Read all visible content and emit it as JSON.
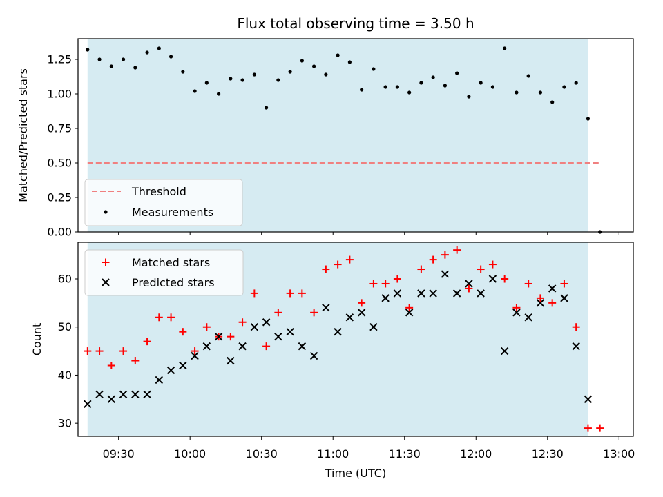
{
  "chart_data": [
    {
      "type": "scatter",
      "title": "Flux total observing time = 3.50 h",
      "xlabel": "",
      "ylabel": "Matched/Predicted stars",
      "xlim": [
        "09:13",
        "13:06"
      ],
      "ylim": [
        0,
        1.4
      ],
      "yticks": [
        0.0,
        0.25,
        0.5,
        0.75,
        1.0,
        1.25
      ],
      "ytick_labels": [
        "0.00",
        "0.25",
        "0.50",
        "0.75",
        "1.00",
        "1.25"
      ],
      "observing_window": [
        "09:17",
        "12:47"
      ],
      "observing_window_color": "#add8e6",
      "grid": false,
      "legend_position": "lower left",
      "threshold": {
        "name": "Threshold",
        "value": 0.5,
        "x_range": [
          "09:17",
          "12:52"
        ],
        "color": "#f08080",
        "style": "dashed"
      },
      "series": [
        {
          "name": "Measurements",
          "marker": "dot",
          "color": "#000000",
          "x": [
            "09:17",
            "09:22",
            "09:27",
            "09:32",
            "09:37",
            "09:42",
            "09:47",
            "09:52",
            "09:57",
            "10:02",
            "10:07",
            "10:12",
            "10:17",
            "10:22",
            "10:27",
            "10:32",
            "10:37",
            "10:42",
            "10:47",
            "10:52",
            "10:57",
            "11:02",
            "11:07",
            "11:12",
            "11:17",
            "11:22",
            "11:27",
            "11:32",
            "11:37",
            "11:42",
            "11:47",
            "11:52",
            "11:57",
            "12:02",
            "12:07",
            "12:12",
            "12:17",
            "12:22",
            "12:27",
            "12:32",
            "12:37",
            "12:42",
            "12:47",
            "12:52"
          ],
          "y": [
            1.32,
            1.25,
            1.2,
            1.25,
            1.19,
            1.3,
            1.33,
            1.27,
            1.16,
            1.02,
            1.08,
            1.0,
            1.11,
            1.1,
            1.14,
            0.9,
            1.1,
            1.16,
            1.24,
            1.2,
            1.14,
            1.28,
            1.23,
            1.03,
            1.18,
            1.05,
            1.05,
            1.01,
            1.08,
            1.12,
            1.06,
            1.15,
            0.98,
            1.08,
            1.05,
            1.33,
            1.01,
            1.13,
            1.01,
            0.94,
            1.05,
            1.08,
            0.82,
            0.0
          ]
        }
      ]
    },
    {
      "type": "scatter",
      "title": "",
      "xlabel": "Time (UTC)",
      "ylabel": "Count",
      "xlim": [
        "09:13",
        "13:06"
      ],
      "ylim": [
        27.3,
        67.6
      ],
      "yticks": [
        30,
        40,
        50,
        60
      ],
      "ytick_labels": [
        "30",
        "40",
        "50",
        "60"
      ],
      "xticks": [
        "09:30",
        "10:00",
        "10:30",
        "11:00",
        "11:30",
        "12:00",
        "12:30",
        "13:00"
      ],
      "xtick_labels": [
        "09:30",
        "10:00",
        "10:30",
        "11:00",
        "11:30",
        "12:00",
        "12:30",
        "13:00"
      ],
      "observing_window": [
        "09:17",
        "12:47"
      ],
      "observing_window_color": "#add8e6",
      "grid": false,
      "legend_position": "upper left",
      "series": [
        {
          "name": "Matched stars",
          "marker": "plus",
          "color": "#ff0000",
          "x": [
            "09:17",
            "09:22",
            "09:27",
            "09:32",
            "09:37",
            "09:42",
            "09:47",
            "09:52",
            "09:57",
            "10:02",
            "10:07",
            "10:12",
            "10:17",
            "10:22",
            "10:27",
            "10:32",
            "10:37",
            "10:42",
            "10:47",
            "10:52",
            "10:57",
            "11:02",
            "11:07",
            "11:12",
            "11:17",
            "11:22",
            "11:27",
            "11:32",
            "11:37",
            "11:42",
            "11:47",
            "11:52",
            "11:57",
            "12:02",
            "12:07",
            "12:12",
            "12:17",
            "12:22",
            "12:27",
            "12:32",
            "12:37",
            "12:42",
            "12:47",
            "12:52"
          ],
          "y": [
            45,
            45,
            42,
            45,
            43,
            47,
            52,
            52,
            49,
            45,
            50,
            48,
            48,
            51,
            57,
            46,
            53,
            57,
            57,
            53,
            62,
            63,
            64,
            55,
            59,
            59,
            60,
            54,
            62,
            64,
            65,
            66,
            58,
            62,
            63,
            60,
            54,
            59,
            56,
            55,
            59,
            50,
            29,
            29
          ]
        },
        {
          "name": "Predicted stars",
          "marker": "x",
          "color": "#000000",
          "x": [
            "09:17",
            "09:22",
            "09:27",
            "09:32",
            "09:37",
            "09:42",
            "09:47",
            "09:52",
            "09:57",
            "10:02",
            "10:07",
            "10:12",
            "10:17",
            "10:22",
            "10:27",
            "10:32",
            "10:37",
            "10:42",
            "10:47",
            "10:52",
            "10:57",
            "11:02",
            "11:07",
            "11:12",
            "11:17",
            "11:22",
            "11:27",
            "11:32",
            "11:37",
            "11:42",
            "11:47",
            "11:52",
            "11:57",
            "12:02",
            "12:07",
            "12:12",
            "12:17",
            "12:22",
            "12:27",
            "12:32",
            "12:37",
            "12:42",
            "12:47"
          ],
          "y": [
            34,
            36,
            35,
            36,
            36,
            36,
            39,
            41,
            42,
            44,
            46,
            48,
            43,
            46,
            50,
            51,
            48,
            49,
            46,
            44,
            54,
            49,
            52,
            53,
            50,
            56,
            57,
            53,
            57,
            57,
            61,
            57,
            59,
            57,
            60,
            45,
            53,
            52,
            55,
            58,
            56,
            46,
            35
          ]
        }
      ]
    }
  ]
}
